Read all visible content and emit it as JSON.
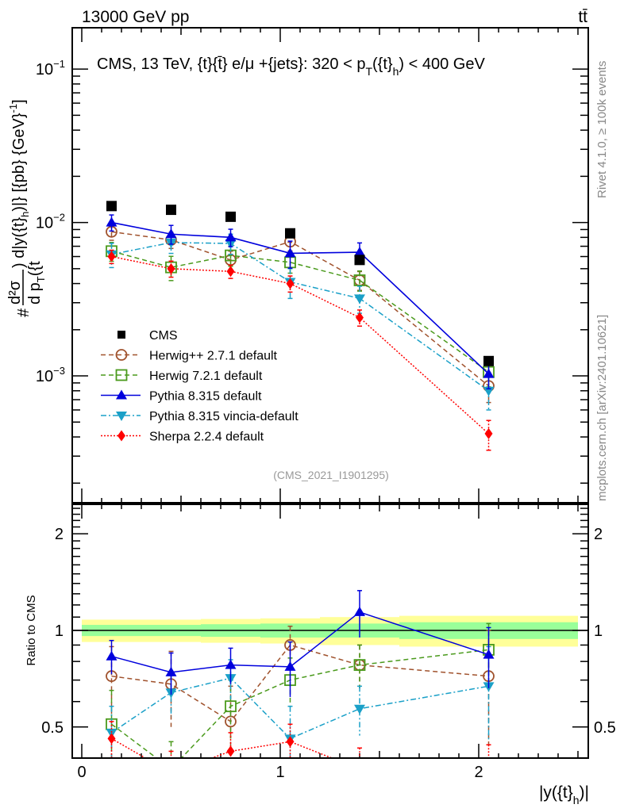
{
  "header": {
    "left_label": "13000 GeV pp",
    "right_label": "tt̄"
  },
  "side_labels": {
    "rivet": "Rivet 4.1.0, ≥ 100k events",
    "mcplots": "mcplots.cern.ch [arXiv:2401.10621]"
  },
  "analysis_tag": "(CMS_2021_I1901295)",
  "chart_data": [
    {
      "panel": "main",
      "type": "line",
      "title": "CMS, 13 TeV, {t}{t̄} e/μ +{jets}: 320 <  p_T({t}_h) < 400 GeV",
      "title_parts": {
        "prefix": "CMS, 13 TeV, {t}{t̄} e/μ +{jets}: 320 <  p",
        "sub1": "T",
        "mid": "({t}",
        "sub2": "h",
        "suffix": ") < 400 GeV"
      },
      "xlabel": "|y({t}_h)|",
      "ylabel": "#d²σ/dp_T({t_h}) d|y({t}_h)| [{pb} {GeV}⁻¹]",
      "ylabel_parts": {
        "hash": "#",
        "numerator": "d²σ",
        "denominator": "d p",
        "denominator_sub": "T",
        "denominator_suffix": "({t",
        "rest": ") d|y({t}",
        "rest_sub": "h",
        "rest_suffix": ")|} [{pb} {GeV}",
        "exponent": "-1",
        "close": "]"
      },
      "yscale": "log",
      "ylim": [
        0.000149,
        0.186
      ],
      "xlim": [
        -0.048,
        2.552
      ],
      "y_tick_labels": [
        {
          "value": 0.1,
          "base": "10",
          "exp": "−1"
        },
        {
          "value": 0.01,
          "base": "10",
          "exp": "−2"
        },
        {
          "value": 0.001,
          "base": "10",
          "exp": "−3"
        }
      ],
      "bin_edges": [
        0.0,
        0.3,
        0.6,
        0.9,
        1.2,
        1.6,
        2.5
      ],
      "x": [
        0.15,
        0.45,
        0.75,
        1.05,
        1.4,
        2.05
      ],
      "legend_position": "lower-left",
      "series": [
        {
          "name": "CMS",
          "key": "cms",
          "color": "#000000",
          "marker": "square",
          "line": "none",
          "values": [
            0.0128,
            0.0121,
            0.0109,
            0.0085,
            0.0057,
            0.00125
          ],
          "err_rel": [
            0.0,
            0.0,
            0.0,
            0.0,
            0.0,
            0.0
          ]
        },
        {
          "name": "Herwig++ 2.7.1 default",
          "key": "herwigpp",
          "color": "#a0522d",
          "marker": "open-circle",
          "line": "dashed",
          "values": [
            0.0087,
            0.0077,
            0.0057,
            0.0075,
            0.0042,
            0.00086
          ],
          "err_rel": [
            0.12,
            0.12,
            0.14,
            0.13,
            0.14,
            0.22
          ]
        },
        {
          "name": "Herwig 7.2.1 default",
          "key": "herwig7",
          "color": "#4a9a1c",
          "marker": "open-square",
          "line": "dashed",
          "values": [
            0.0065,
            0.0051,
            0.0061,
            0.0055,
            0.0042,
            0.00106
          ],
          "err_rel": [
            0.14,
            0.18,
            0.15,
            0.15,
            0.15,
            0.2
          ]
        },
        {
          "name": "Pythia 8.315 default",
          "key": "pythia",
          "color": "#0000dd",
          "marker": "triangle-up",
          "line": "solid",
          "values": [
            0.01,
            0.0084,
            0.008,
            0.0063,
            0.0064,
            0.00103
          ],
          "err_rel": [
            0.12,
            0.14,
            0.13,
            0.2,
            0.15,
            0.2
          ]
        },
        {
          "name": "Pythia 8.315 vincia-default",
          "key": "vincia",
          "color": "#1aa0c8",
          "marker": "triangle-down",
          "line": "dashdot",
          "values": [
            0.0062,
            0.0074,
            0.0073,
            0.0041,
            0.0032,
            0.0008
          ],
          "err_rel": [
            0.18,
            0.15,
            0.15,
            0.22,
            0.2,
            0.25
          ]
        },
        {
          "name": "Sherpa 2.2.4 default",
          "key": "sherpa",
          "color": "#ff0000",
          "marker": "diamond",
          "line": "dotted",
          "values": [
            0.006,
            0.005,
            0.0048,
            0.004,
            0.0024,
            0.00042
          ],
          "err_rel": [
            0.1,
            0.12,
            0.1,
            0.12,
            0.12,
            0.22
          ]
        }
      ]
    },
    {
      "panel": "ratio",
      "type": "line",
      "ylabel": "Ratio to CMS",
      "xlabel": "|y({t}_h)|",
      "xlabel_parts": {
        "main": "|y({t}",
        "sub": "h",
        "close": ")|"
      },
      "yscale": "log",
      "ylim": [
        0.4,
        2.47
      ],
      "y_tick_labels": [
        {
          "value": 0.5,
          "label": "0.5"
        },
        {
          "value": 1,
          "label": "1"
        },
        {
          "value": 2,
          "label": "2"
        }
      ],
      "x_tick_labels": [
        {
          "value": 0,
          "label": "0"
        },
        {
          "value": 1,
          "label": "1"
        },
        {
          "value": 2,
          "label": "2"
        }
      ],
      "reference_line": 1,
      "band_inner": [
        0.04,
        0.04,
        0.045,
        0.05,
        0.05,
        0.06
      ],
      "band_outer": [
        0.08,
        0.08,
        0.085,
        0.09,
        0.1,
        0.11
      ],
      "band_colors": {
        "inner": "#99ff99",
        "outer": "#ffff99"
      },
      "series": [
        {
          "name": "Herwig++ 2.7.1 default",
          "key": "herwigpp",
          "values": [
            0.72,
            0.68,
            0.52,
            0.9,
            0.78,
            0.72
          ],
          "err": [
            0.17,
            0.18,
            0.15,
            0.13,
            0.12,
            0.28
          ]
        },
        {
          "name": "Herwig 7.2.1 default",
          "key": "herwig7",
          "values": [
            0.51,
            0.37,
            0.58,
            0.7,
            0.78,
            0.87
          ],
          "err": [
            0.14,
            0.08,
            0.12,
            0.12,
            0.12,
            0.18
          ]
        },
        {
          "name": "Pythia 8.315 default",
          "key": "pythia",
          "values": [
            0.83,
            0.74,
            0.78,
            0.77,
            1.14,
            0.84
          ],
          "err": [
            0.1,
            0.11,
            0.1,
            0.15,
            0.19,
            0.18
          ]
        },
        {
          "name": "Pythia 8.315 vincia-default",
          "key": "vincia",
          "values": [
            0.48,
            0.64,
            0.71,
            0.46,
            0.57,
            0.67
          ],
          "err": [
            0.1,
            0.1,
            0.1,
            0.12,
            0.1,
            0.22
          ]
        },
        {
          "name": "Sherpa 2.2.4 default",
          "key": "sherpa",
          "values": [
            0.46,
            0.36,
            0.42,
            0.45,
            0.37,
            0.34
          ],
          "err": [
            0.06,
            0.06,
            0.06,
            0.06,
            0.06,
            0.1
          ]
        }
      ]
    }
  ]
}
